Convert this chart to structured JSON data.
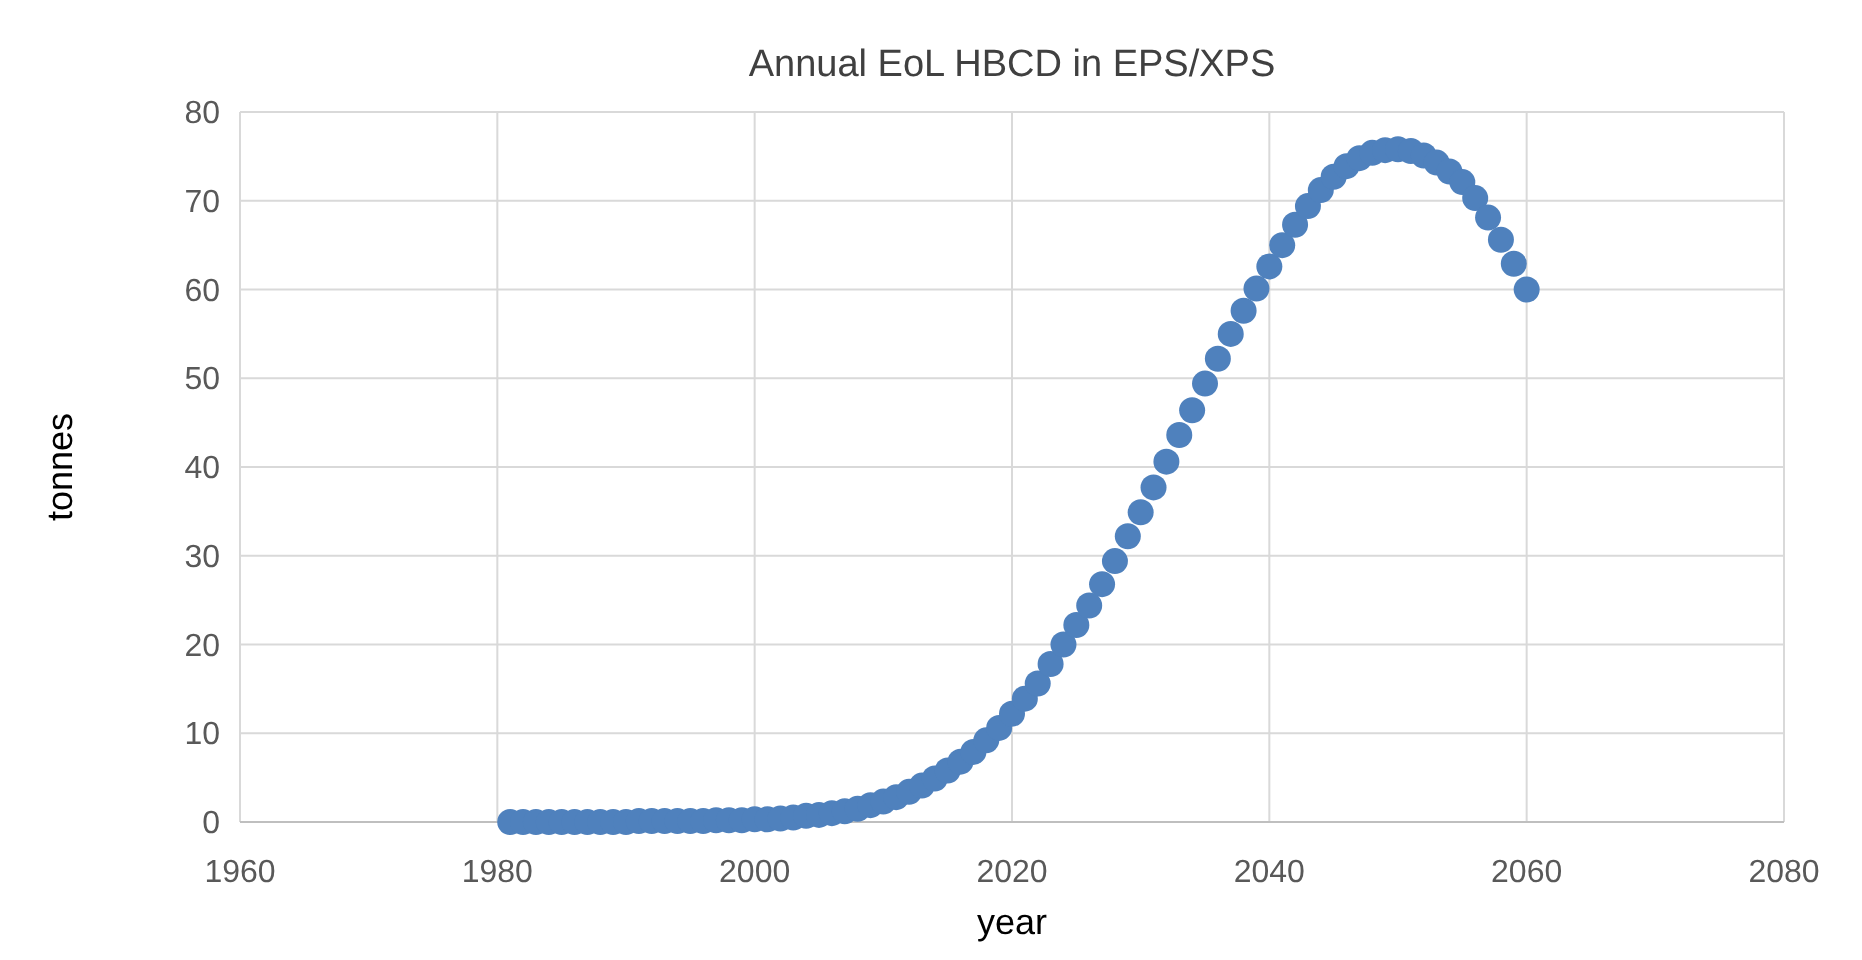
{
  "chart_data": {
    "type": "scatter",
    "title": "Annual EoL HBCD in EPS/XPS",
    "xlabel": "year",
    "ylabel": "tonnes",
    "x": [
      1981,
      1982,
      1983,
      1984,
      1985,
      1986,
      1987,
      1988,
      1989,
      1990,
      1991,
      1992,
      1993,
      1994,
      1995,
      1996,
      1997,
      1998,
      1999,
      2000,
      2001,
      2002,
      2003,
      2004,
      2005,
      2006,
      2007,
      2008,
      2009,
      2010,
      2011,
      2012,
      2013,
      2014,
      2015,
      2016,
      2017,
      2018,
      2019,
      2020,
      2021,
      2022,
      2023,
      2024,
      2025,
      2026,
      2027,
      2028,
      2029,
      2030,
      2031,
      2032,
      2033,
      2034,
      2035,
      2036,
      2037,
      2038,
      2039,
      2040,
      2041,
      2042,
      2043,
      2044,
      2045,
      2046,
      2047,
      2048,
      2049,
      2050,
      2051,
      2052,
      2053,
      2054,
      2055,
      2056,
      2057,
      2058,
      2059,
      2060
    ],
    "series": [
      {
        "color": "#4f81bd",
        "values": [
          0,
          0,
          0,
          0,
          0,
          0,
          0,
          0,
          0,
          0,
          0.1,
          0.1,
          0.1,
          0.1,
          0.1,
          0.1,
          0.2,
          0.2,
          0.2,
          0.3,
          0.3,
          0.4,
          0.5,
          0.7,
          0.8,
          1,
          1.2,
          1.5,
          1.9,
          2.3,
          2.8,
          3.4,
          4.1,
          4.9,
          5.8,
          6.8,
          7.9,
          9.2,
          10.6,
          12.2,
          13.9,
          15.6,
          17.8,
          20,
          22.2,
          24.4,
          26.8,
          29.4,
          32.2,
          34.9,
          37.7,
          40.6,
          43.6,
          46.4,
          49.4,
          52.2,
          55,
          57.6,
          60.1,
          62.6,
          65,
          67.3,
          69.4,
          71.2,
          72.7,
          73.9,
          74.8,
          75.4,
          75.7,
          75.8,
          75.6,
          75.1,
          74.3,
          73.3,
          72.1,
          70.3,
          68.1,
          65.6,
          62.9,
          60
        ]
      }
    ],
    "xlim": [
      1960,
      2080
    ],
    "xticks": [
      1960,
      1980,
      2000,
      2020,
      2040,
      2060,
      2080
    ],
    "ylim": [
      0,
      80
    ],
    "yticks": [
      0,
      10,
      20,
      30,
      40,
      50,
      60,
      70,
      80
    ],
    "grid": true,
    "marker": "circle"
  }
}
